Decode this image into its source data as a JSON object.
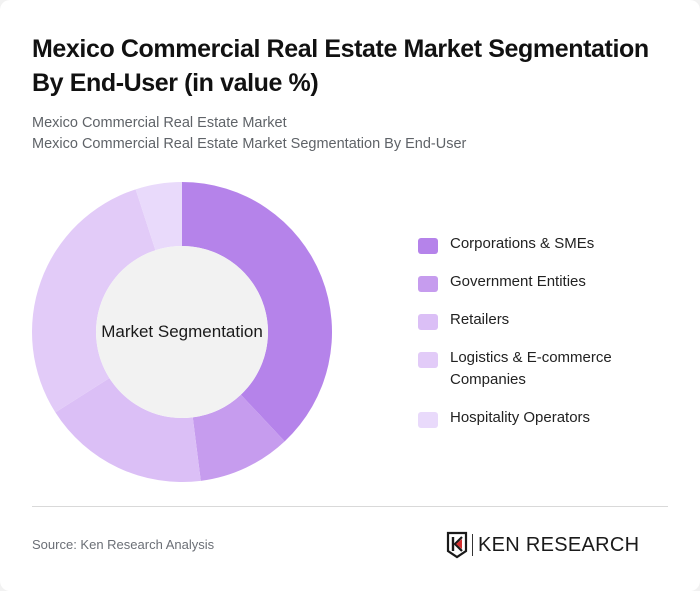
{
  "header": {
    "title": "Mexico Commercial Real Estate Market Segmentation By End-User (in value %)",
    "subtitle_lines": [
      "Mexico Commercial Real Estate Market",
      "Mexico Commercial Real Estate Market Segmentation By End-User"
    ]
  },
  "chart": {
    "center_label": "Market Segmentation"
  },
  "legend": [
    {
      "label": "Corporations & SMEs",
      "color": "#b583ea"
    },
    {
      "label": "Government Entities",
      "color": "#c69cee"
    },
    {
      "label": "Retailers",
      "color": "#dbbff6"
    },
    {
      "label": "Logistics & E-commerce Companies",
      "color": "#e2cbf8"
    },
    {
      "label": "Hospitality Operators",
      "color": "#e9dafb"
    }
  ],
  "footer": {
    "source": "Source: Ken Research Analysis",
    "logo_text": "KEN RESEARCH"
  },
  "chart_data": {
    "type": "pie",
    "subtype": "donut",
    "title": "Mexico Commercial Real Estate Market Segmentation By End-User (in value %)",
    "center_label": "Market Segmentation",
    "categories": [
      "Corporations & SMEs",
      "Government Entities",
      "Retailers",
      "Logistics & E-commerce Companies",
      "Hospitality Operators"
    ],
    "values": [
      38,
      10,
      18,
      29,
      5
    ],
    "colors": [
      "#b583ea",
      "#c69cee",
      "#dbbff6",
      "#e2cbf8",
      "#e9dafb"
    ],
    "unit": "%",
    "legend_position": "right",
    "start_angle": "12 o'clock, clockwise"
  }
}
